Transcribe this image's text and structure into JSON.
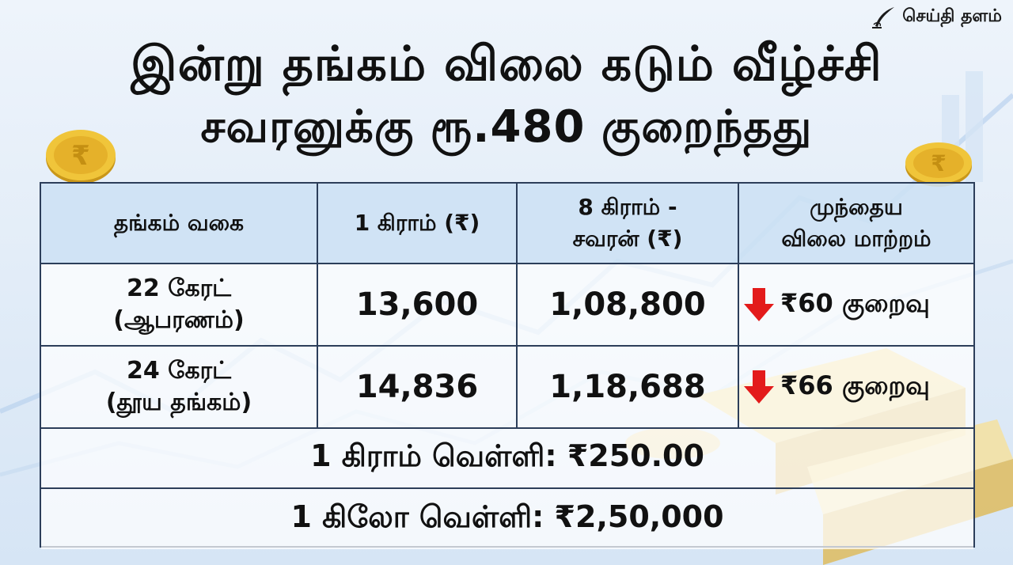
{
  "logo": {
    "text": "செய்தி தளம்",
    "icon": "quill-pen-icon"
  },
  "headline": {
    "line1": "இன்று தங்கம் விலை கடும் வீழ்ச்சி",
    "line2": "சவரனுக்கு ரூ.480 குறைந்தது"
  },
  "table": {
    "headers": [
      {
        "lines": [
          "தங்கம் வகை"
        ]
      },
      {
        "lines": [
          "1 கிராம் (₹)"
        ]
      },
      {
        "lines": [
          "8 கிராம் -",
          "சவரன் (₹)"
        ]
      },
      {
        "lines": [
          "முந்தைய",
          "விலை மாற்றம்"
        ]
      }
    ],
    "rows": [
      {
        "type_lines": [
          "22 கேரட்",
          "(ஆபரணம்)"
        ],
        "gram": "13,600",
        "sovereign": "1,08,800",
        "change": "₹60 குறைவு",
        "trend_icon": "down-arrow-icon"
      },
      {
        "type_lines": [
          "24 கேரட்",
          "(தூய தங்கம்)"
        ],
        "gram": "14,836",
        "sovereign": "1,18,688",
        "change": "₹66 குறைவு",
        "trend_icon": "down-arrow-icon"
      }
    ],
    "silver_gram": "1 கிராம் வெள்ளி: ₹250.00",
    "silver_kilo": "1 கிலோ வெள்ளி: ₹2,50,000"
  },
  "colors": {
    "down_arrow": "#e31b1b",
    "border": "#2c3e5a",
    "header_bg": "#cde1f4",
    "gold": "#e8b923"
  }
}
